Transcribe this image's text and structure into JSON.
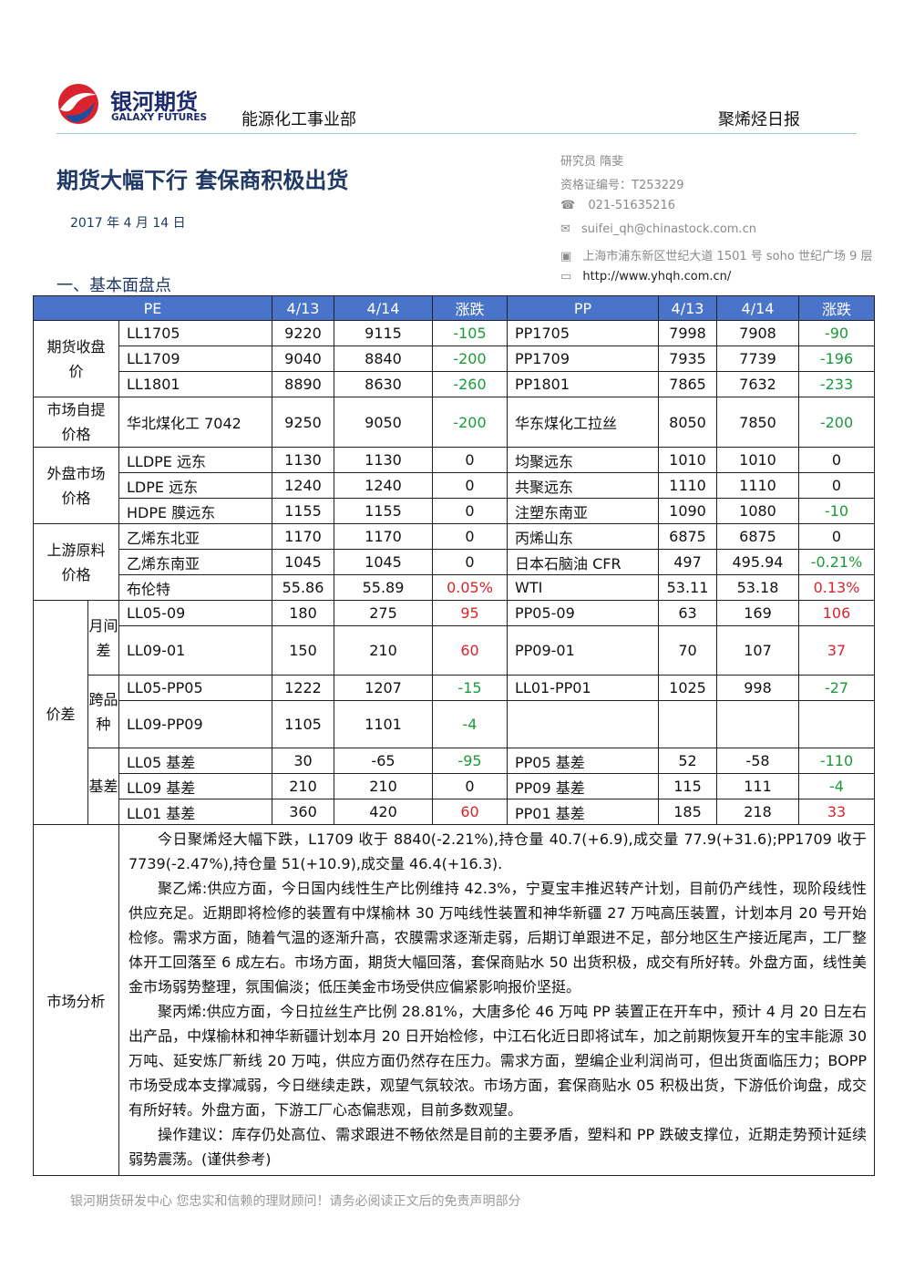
{
  "header": {
    "logo_cn": "银河期货",
    "logo_en": "GALAXY FUTURES",
    "department": "能源化工事业部",
    "report": "聚烯烃日报"
  },
  "title": "期货大幅下行 套保商积极出货",
  "date": "2017 年 4 月 14 日",
  "analyst": [
    "研究员  隋斐",
    "资格证编号：T253229",
    "021-51635216",
    "suifei_qh@chinastock.com.cn",
    "上海市浦东新区世纪大道 1501 号 soho 世纪广场 9 层",
    "http://www.yhqh.com.cn/"
  ],
  "section": "一、基本面盘点",
  "table": {
    "header": [
      "PE",
      "4/13",
      "4/14",
      "涨跌",
      "PP",
      "4/13",
      "4/14",
      "涨跌"
    ],
    "groups": [
      {
        "label": "期货收盘价",
        "rows": [
          [
            "LL1705",
            "9220",
            "9115",
            "-105",
            "PP1705",
            "7998",
            "7908",
            "-90"
          ],
          [
            "LL1709",
            "9040",
            "8840",
            "-200",
            "PP1709",
            "7935",
            "7739",
            "-196"
          ],
          [
            "LL1801",
            "8890",
            "8630",
            "-260",
            "PP1801",
            "7865",
            "7632",
            "-233"
          ]
        ]
      },
      {
        "label": "市场自提价格",
        "rows": [
          [
            "华北煤化工 7042",
            "9250",
            "9050",
            "-200",
            "华东煤化工拉丝",
            "8050",
            "7850",
            "-200"
          ]
        ]
      },
      {
        "label": "外盘市场价格",
        "rows": [
          [
            "LLDPE 远东",
            "1130",
            "1130",
            "0",
            "均聚远东",
            "1010",
            "1010",
            "0"
          ],
          [
            "LDPE 远东",
            "1240",
            "1240",
            "0",
            "共聚远东",
            "1110",
            "1110",
            "0"
          ],
          [
            "HDPE 膜远东",
            "1155",
            "1155",
            "0",
            "注塑东南亚",
            "1090",
            "1080",
            "-10"
          ]
        ]
      },
      {
        "label": "上游原料价格",
        "rows": [
          [
            "乙烯东北亚",
            "1170",
            "1170",
            "0",
            "丙烯山东",
            "6875",
            "6875",
            "0"
          ],
          [
            "乙烯东南亚",
            "1045",
            "1045",
            "0",
            "日本石脑油 CFR",
            "497",
            "495.94",
            "-0.21%"
          ],
          [
            "布伦特",
            "55.86",
            "55.89",
            "0.05%",
            "WTI",
            "53.11",
            "53.18",
            "0.13%"
          ]
        ]
      }
    ],
    "spread": {
      "label": "价差",
      "subgroups": [
        {
          "label": "月间差",
          "rows": [
            [
              "LL05-09",
              "180",
              "275",
              "95",
              "PP05-09",
              "63",
              "169",
              "106"
            ],
            [
              "LL09-01",
              "150",
              "210",
              "60",
              "PP09-01",
              "70",
              "107",
              "37"
            ]
          ]
        },
        {
          "label": "跨品种",
          "rows": [
            [
              "LL05-PP05",
              "1222",
              "1207",
              "-15",
              "LL01-PP01",
              "1025",
              "998",
              "-27"
            ],
            [
              "LL09-PP09",
              "1105",
              "1101",
              "-4",
              null,
              null,
              null,
              null
            ]
          ]
        },
        {
          "label": "基差",
          "rows": [
            [
              "LL05 基差",
              "30",
              "-65",
              "-95",
              "PP05 基差",
              "52",
              "-58",
              "-110"
            ],
            [
              "LL09 基差",
              "210",
              "210",
              "0",
              "PP09 基差",
              "115",
              "111",
              "-4"
            ],
            [
              "LL01 基差",
              "360",
              "420",
              "60",
              "PP01 基差",
              "185",
              "218",
              "33"
            ]
          ]
        }
      ]
    },
    "analysis": {
      "label": "市场分析",
      "paragraphs": [
        "今日聚烯烃大幅下跌，L1709 收于 8840(-2.21%),持仓量 40.7(+6.9),成交量 77.9(+31.6);PP1709 收于 7739(-2.47%),持仓量 51(+10.9),成交量 46.4(+16.3).",
        "聚乙烯:供应方面，今日国内线性生产比例维持 42.3%，宁夏宝丰推迟转产计划，目前仍产线性，现阶段线性供应充足。近期即将检修的装置有中煤榆林 30 万吨线性装置和神华新疆 27 万吨高压装置，计划本月 20 号开始检修。需求方面，随着气温的逐渐升高，农膜需求逐渐走弱，后期订单跟进不足，部分地区生产接近尾声，工厂整体开工回落至 6 成左右。市场方面，期货大幅回落，套保商贴水 50 出货积极，成交有所好转。外盘方面，线性美金市场弱势整理，氛围偏淡；低压美金市场受供应偏紧影响报价坚挺。",
        "聚丙烯:供应方面，今日拉丝生产比例 28.81%，大唐多伦 46 万吨 PP 装置正在开车中，预计 4 月 20 日左右出产品，中煤榆林和神华新疆计划本月 20 日开始检修，中江石化近日即将试车，加之前期恢复开车的宝丰能源 30 万吨、延安炼厂新线 20 万吨，供应方面仍然存在压力。需求方面，塑编企业利润尚可，但出货面临压力；BOPP 市场受成本支撑减弱，今日继续走跌，观望气氛较浓。市场方面，套保商贴水 05 积极出货，下游低价询盘，成交有所好转。外盘方面，下游工厂心态偏悲观，目前多数观望。",
        "操作建议：库存仍处高位、需求跟进不畅依然是目前的主要矛盾，塑料和 PP 跌破支撑位，近期走势预计延续弱势震荡。(谨供参考)"
      ]
    }
  },
  "footer": "银河期货研发中心 您忠实和信赖的理财顾问！请务必阅读正文后的免责声明部分"
}
